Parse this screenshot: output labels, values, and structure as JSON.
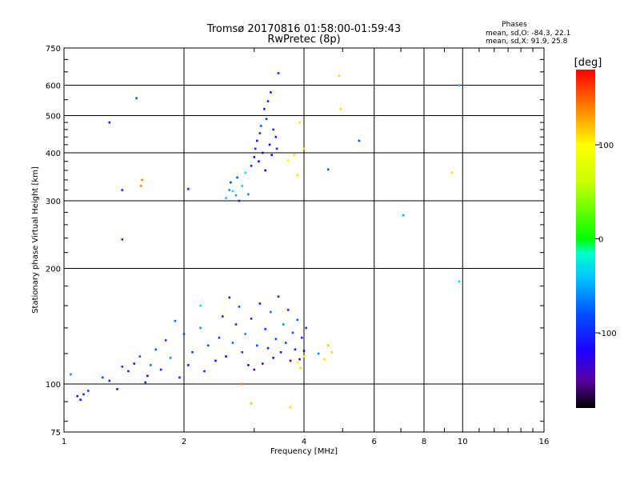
{
  "chart_data": {
    "type": "scatter",
    "title": "Tromsø 20170816 01:58:00-01:59:43",
    "subtitle": "RwPretec (8p)",
    "xlabel": "Frequency [MHz]",
    "ylabel": "Stationary phase Virtual Height [km]",
    "x_scale": "log",
    "y_scale": "log",
    "xlim": [
      1,
      16
    ],
    "ylim": [
      75,
      750
    ],
    "x_ticks": [
      1,
      2,
      4,
      6,
      8,
      10,
      16
    ],
    "x_tick_labels": [
      "1",
      "2",
      "4",
      "6",
      "8",
      "10",
      "16"
    ],
    "y_ticks": [
      75,
      100,
      200,
      300,
      400,
      500,
      600,
      750
    ],
    "y_tick_labels": [
      "75",
      "100",
      "200",
      "300",
      "400",
      "500",
      "600",
      "750"
    ],
    "grid": true,
    "phase_stats": {
      "heading": "Phases",
      "line_o": "mean, sd,O:  -84.3, 22.1",
      "line_x": "mean, sd,X:  91.9, 25.8"
    },
    "colorbar": {
      "unit": "[deg]",
      "min": -180,
      "max": 180,
      "tick_values": [
        100,
        0,
        -100
      ],
      "tick_labels": [
        "100",
        "0",
        "-100"
      ],
      "stops": [
        {
          "v": -180,
          "color": "#000000"
        },
        {
          "v": -150,
          "color": "#5a00a0"
        },
        {
          "v": -120,
          "color": "#1e00ff"
        },
        {
          "v": -80,
          "color": "#0050ff"
        },
        {
          "v": -40,
          "color": "#00c8ff"
        },
        {
          "v": -15,
          "color": "#00ffc8"
        },
        {
          "v": 0,
          "color": "#00ff00"
        },
        {
          "v": 60,
          "color": "#c8ff00"
        },
        {
          "v": 100,
          "color": "#ffff00"
        },
        {
          "v": 140,
          "color": "#ff8000"
        },
        {
          "v": 180,
          "color": "#ff0000"
        }
      ]
    },
    "series": [
      {
        "points": [
          [
            1.04,
            106,
            -60
          ],
          [
            1.08,
            93,
            -110
          ],
          [
            1.1,
            91,
            -120
          ],
          [
            1.12,
            94,
            -100
          ],
          [
            1.15,
            96,
            -90
          ],
          [
            1.25,
            104,
            -80
          ],
          [
            1.3,
            102,
            -100
          ],
          [
            1.36,
            97,
            -110
          ],
          [
            1.4,
            111,
            -90
          ],
          [
            1.45,
            108,
            -100
          ],
          [
            1.5,
            113,
            -110
          ],
          [
            1.55,
            118,
            -80
          ],
          [
            1.6,
            101,
            -100
          ],
          [
            1.62,
            105,
            -120
          ],
          [
            1.65,
            112,
            -70
          ],
          [
            1.7,
            123,
            -80
          ],
          [
            1.75,
            109,
            -100
          ],
          [
            1.8,
            130,
            -90
          ],
          [
            1.85,
            117,
            -60
          ],
          [
            1.9,
            146,
            -70
          ],
          [
            1.95,
            104,
            -100
          ],
          [
            2.0,
            135,
            -80
          ],
          [
            2.05,
            112,
            -110
          ],
          [
            2.1,
            121,
            -90
          ],
          [
            2.2,
            140,
            -60
          ],
          [
            2.25,
            108,
            -100
          ],
          [
            2.3,
            126,
            -80
          ],
          [
            2.4,
            115,
            -110
          ],
          [
            2.45,
            132,
            -90
          ],
          [
            2.5,
            150,
            -100
          ],
          [
            2.55,
            118,
            -120
          ],
          [
            2.6,
            168,
            -110
          ],
          [
            2.65,
            128,
            -70
          ],
          [
            2.7,
            143,
            -100
          ],
          [
            2.75,
            159,
            -80
          ],
          [
            2.8,
            121,
            -90
          ],
          [
            2.85,
            135,
            -60
          ],
          [
            2.9,
            112,
            -130
          ],
          [
            2.95,
            148,
            -100
          ],
          [
            3.0,
            109,
            -140
          ],
          [
            3.05,
            126,
            -80
          ],
          [
            3.1,
            162,
            -110
          ],
          [
            3.15,
            113,
            -150
          ],
          [
            3.2,
            139,
            -90
          ],
          [
            3.25,
            124,
            -100
          ],
          [
            3.3,
            154,
            -70
          ],
          [
            3.35,
            117,
            -140
          ],
          [
            3.4,
            131,
            -80
          ],
          [
            3.45,
            169,
            -100
          ],
          [
            3.5,
            121,
            -120
          ],
          [
            3.55,
            143,
            -60
          ],
          [
            3.6,
            128,
            -90
          ],
          [
            3.65,
            156,
            -100
          ],
          [
            3.7,
            115,
            -140
          ],
          [
            3.75,
            136,
            -80
          ],
          [
            3.8,
            123,
            -110
          ],
          [
            3.85,
            147,
            -70
          ],
          [
            3.9,
            116,
            -150
          ],
          [
            3.95,
            132,
            -100
          ],
          [
            4.0,
            122,
            -120
          ],
          [
            4.05,
            140,
            -90
          ],
          [
            3.85,
            114,
            100
          ],
          [
            3.92,
            110,
            110
          ],
          [
            4.0,
            118,
            105
          ],
          [
            4.5,
            116,
            110
          ],
          [
            4.6,
            126,
            120
          ],
          [
            4.7,
            121,
            115
          ],
          [
            4.35,
            120,
            -60
          ],
          [
            2.55,
            305,
            -40
          ],
          [
            2.6,
            320,
            -60
          ],
          [
            2.62,
            335,
            -90
          ],
          [
            2.65,
            318,
            -30
          ],
          [
            2.7,
            310,
            -50
          ],
          [
            2.72,
            345,
            -80
          ],
          [
            2.75,
            300,
            -100
          ],
          [
            2.8,
            328,
            -40
          ],
          [
            2.85,
            355,
            -20
          ],
          [
            2.9,
            312,
            -60
          ],
          [
            2.95,
            370,
            -100
          ],
          [
            3.0,
            390,
            -120
          ],
          [
            3.02,
            410,
            -90
          ],
          [
            3.05,
            430,
            -110
          ],
          [
            3.08,
            380,
            -130
          ],
          [
            3.1,
            450,
            -100
          ],
          [
            3.12,
            470,
            -80
          ],
          [
            3.15,
            400,
            -120
          ],
          [
            3.18,
            520,
            -110
          ],
          [
            3.2,
            360,
            -130
          ],
          [
            3.22,
            490,
            -90
          ],
          [
            3.25,
            545,
            -100
          ],
          [
            3.28,
            420,
            -120
          ],
          [
            3.3,
            575,
            -110
          ],
          [
            3.32,
            395,
            -130
          ],
          [
            3.35,
            460,
            -90
          ],
          [
            3.4,
            440,
            -110
          ],
          [
            3.42,
            410,
            -100
          ],
          [
            1.3,
            480,
            -120
          ],
          [
            1.4,
            320,
            -110
          ],
          [
            1.4,
            238,
            -100
          ],
          [
            1.52,
            555,
            -80
          ],
          [
            1.56,
            328,
            140
          ],
          [
            1.57,
            340,
            140
          ],
          [
            2.05,
            322,
            -100
          ],
          [
            3.45,
            645,
            -100
          ],
          [
            3.65,
            382,
            100
          ],
          [
            3.78,
            395,
            110
          ],
          [
            3.85,
            350,
            110
          ],
          [
            3.9,
            480,
            110
          ],
          [
            4.0,
            410,
            110
          ],
          [
            4.6,
            362,
            -80
          ],
          [
            4.9,
            635,
            110
          ],
          [
            4.95,
            520,
            110
          ],
          [
            5.5,
            430,
            -80
          ],
          [
            7.1,
            275,
            -50
          ],
          [
            9.4,
            355,
            110
          ],
          [
            9.8,
            600,
            -40
          ],
          [
            9.8,
            185,
            -30
          ],
          [
            2.2,
            160,
            -20
          ],
          [
            2.8,
            100,
            140
          ],
          [
            2.95,
            89,
            40
          ],
          [
            3.7,
            87,
            110
          ]
        ]
      }
    ]
  }
}
